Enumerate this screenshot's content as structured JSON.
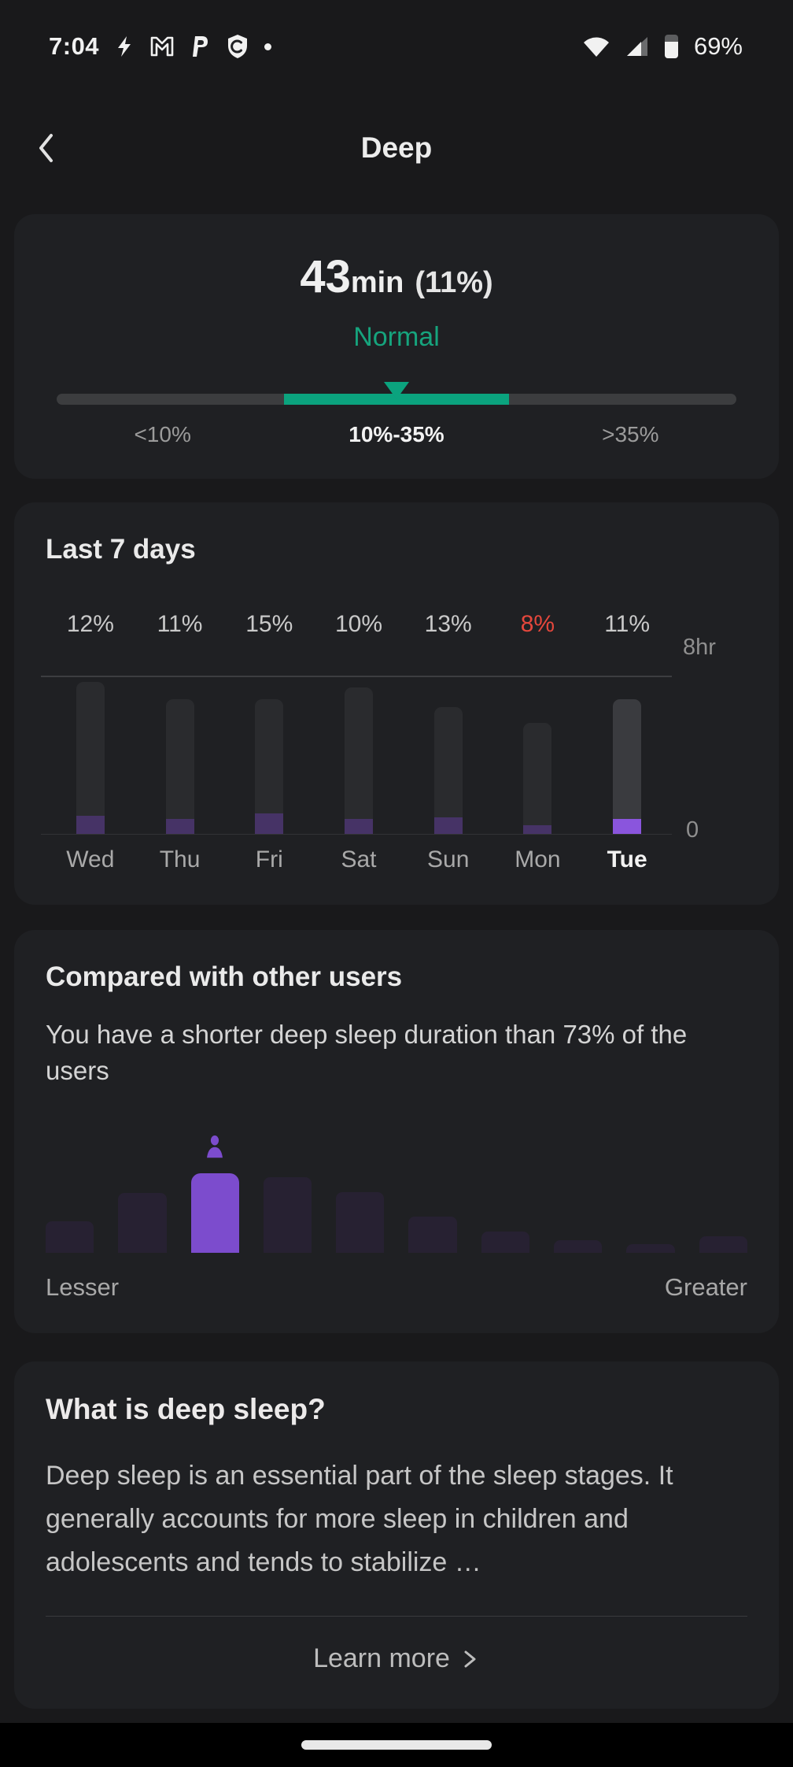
{
  "colors": {
    "background": "#19191b",
    "card": "#1f2023",
    "accent_green": "#0ba37e",
    "status_green_text": "#16a47d",
    "alert_red": "#e5473c",
    "deep_purple_dim": "#463366",
    "deep_purple_bright": "#8a55dd",
    "histogram_highlight_purple": "#7c4ccd",
    "histogram_dim": "#272132",
    "bar_gray": "#2a2b2e"
  },
  "status_bar": {
    "time": "7:04",
    "battery_percent": "69%",
    "left_icons": [
      "lightning-icon",
      "gmail-icon",
      "paypal-icon",
      "shield-icon",
      "notification-dot"
    ],
    "right_icons": [
      "wifi-icon",
      "cell-signal-icon",
      "battery-icon"
    ]
  },
  "header": {
    "title": "Deep"
  },
  "summary": {
    "value": "43",
    "unit": "min",
    "share": "(11%)",
    "status_label": "Normal",
    "zones": [
      {
        "label": "<10%"
      },
      {
        "label": "10%-35%"
      },
      {
        "label": ">35%"
      }
    ],
    "active_zone_index": 1,
    "indicator_position": "center of 10%-35% zone"
  },
  "last7": {
    "title": "Last 7 days",
    "y_max_label": "8hr",
    "y_min_label": "0"
  },
  "comparison": {
    "title": "Compared with other users",
    "description": "You have a shorter deep sleep duration than 73% of the users",
    "left_label": "Lesser",
    "right_label": "Greater"
  },
  "info": {
    "title": "What is deep sleep?",
    "body": "Deep sleep is an essential part of the sleep stages. It generally accounts for more sleep in children and adolescents and tends to stabilize …",
    "learn_more": "Learn more"
  },
  "chart_data": [
    {
      "type": "bar",
      "title": "Last 7 days",
      "categories": [
        "Wed",
        "Thu",
        "Fri",
        "Sat",
        "Sun",
        "Mon",
        "Tue"
      ],
      "series": [
        {
          "name": "Total sleep (hr, estimated from bar height)",
          "values": [
            7.7,
            6.8,
            6.8,
            7.4,
            6.4,
            5.6,
            6.8
          ]
        },
        {
          "name": "Deep sleep (% of night)",
          "values": [
            12,
            11,
            15,
            10,
            13,
            8,
            11
          ]
        }
      ],
      "value_labels": [
        "12%",
        "11%",
        "15%",
        "10%",
        "13%",
        "8%",
        "11%"
      ],
      "low_value_indices": [
        5
      ],
      "selected_index": 6,
      "y_axis": {
        "max_label": "8hr",
        "min_label": "0",
        "max_hours": 8
      },
      "grid": "single horizontal gridline at 8hr, baseline at 0",
      "legend": "none"
    },
    {
      "type": "bar",
      "title": "Deep sleep duration distribution vs other users",
      "values": [
        40,
        76,
        101,
        96,
        77,
        46,
        27,
        16,
        11,
        21
      ],
      "unit": "relative bar height, px",
      "highlight_index": 2,
      "x_left_label": "Lesser",
      "x_right_label": "Greater",
      "annotation": "person icon marks the user's position above highlighted bar"
    }
  ]
}
